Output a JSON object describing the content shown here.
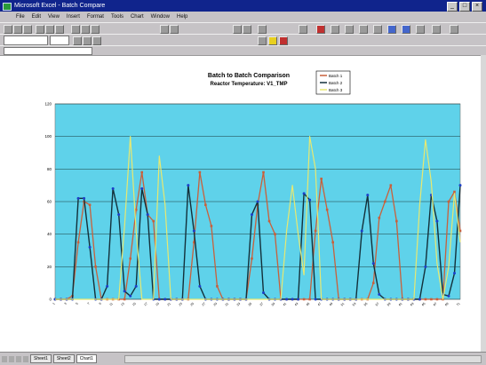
{
  "window": {
    "title": "Microsoft Excel - Batch Compare"
  },
  "menu": [
    "File",
    "Edit",
    "View",
    "Insert",
    "Format",
    "Tools",
    "Chart",
    "Window",
    "Help"
  ],
  "tabs": [
    "Sheet1",
    "Sheet2",
    "Chart1"
  ],
  "colors": {
    "plot_bg": "#5fd2ea",
    "series1": "#c9603b",
    "series2": "#13303a",
    "series3": "#e8e870",
    "marker": "#1c3fc8"
  },
  "chart_data": {
    "type": "line",
    "title": "Batch to Batch Comparison",
    "subtitle": "Reactor Temperature: V1_TMP",
    "ylim": [
      0,
      120
    ],
    "yticks": [
      0,
      20,
      40,
      60,
      80,
      100,
      120
    ],
    "categories": [
      "1",
      "2",
      "3",
      "4",
      "5",
      "6",
      "7",
      "8",
      "9",
      "10",
      "11",
      "12",
      "13",
      "14",
      "15",
      "16",
      "17",
      "18",
      "19",
      "20",
      "21",
      "22",
      "23",
      "24",
      "25",
      "26",
      "27",
      "28",
      "29",
      "30",
      "31",
      "32",
      "33",
      "34",
      "35",
      "36",
      "37",
      "38",
      "39",
      "40",
      "41",
      "42",
      "43",
      "44",
      "45",
      "46",
      "47",
      "48",
      "49",
      "50",
      "51",
      "52",
      "53",
      "54",
      "55",
      "56",
      "57",
      "58",
      "59",
      "60",
      "61",
      "62",
      "63",
      "64",
      "65",
      "66",
      "67",
      "68",
      "69",
      "70",
      "71"
    ],
    "series": [
      {
        "name": "Batch 1",
        "values": [
          0,
          0,
          0,
          2,
          35,
          60,
          58,
          20,
          0,
          0,
          0,
          0,
          0,
          25,
          55,
          78,
          52,
          48,
          0,
          0,
          0,
          0,
          0,
          0,
          35,
          78,
          58,
          45,
          8,
          0,
          0,
          0,
          0,
          0,
          25,
          58,
          78,
          48,
          40,
          0,
          0,
          0,
          0,
          0,
          0,
          42,
          74,
          55,
          35,
          0,
          0,
          0,
          0,
          0,
          0,
          10,
          50,
          60,
          70,
          48,
          0,
          0,
          0,
          0,
          0,
          0,
          0,
          0,
          60,
          66,
          42
        ]
      },
      {
        "name": "Batch 2",
        "values": [
          0,
          0,
          0,
          0,
          62,
          62,
          32,
          0,
          0,
          8,
          68,
          52,
          5,
          2,
          8,
          68,
          52,
          0,
          0,
          0,
          0,
          0,
          0,
          70,
          42,
          8,
          0,
          0,
          0,
          0,
          0,
          0,
          0,
          0,
          52,
          60,
          4,
          0,
          0,
          0,
          0,
          0,
          0,
          65,
          61,
          0,
          0,
          0,
          0,
          0,
          0,
          0,
          0,
          42,
          64,
          22,
          3,
          0,
          0,
          0,
          0,
          0,
          0,
          0,
          20,
          64,
          48,
          3,
          2,
          16,
          70
        ]
      },
      {
        "name": "Batch 3",
        "values": [
          0,
          0,
          0,
          0,
          0,
          0,
          0,
          0,
          0,
          0,
          0,
          0,
          45,
          100,
          42,
          0,
          0,
          0,
          88,
          58,
          0,
          0,
          0,
          0,
          0,
          0,
          0,
          0,
          0,
          0,
          0,
          0,
          0,
          0,
          0,
          0,
          0,
          0,
          0,
          0,
          42,
          70,
          40,
          15,
          100,
          80,
          0,
          0,
          0,
          0,
          0,
          0,
          0,
          0,
          0,
          0,
          0,
          0,
          0,
          0,
          0,
          0,
          0,
          58,
          98,
          72,
          22,
          0,
          20,
          65,
          35
        ]
      }
    ],
    "legend": "top-right",
    "grid": true
  }
}
